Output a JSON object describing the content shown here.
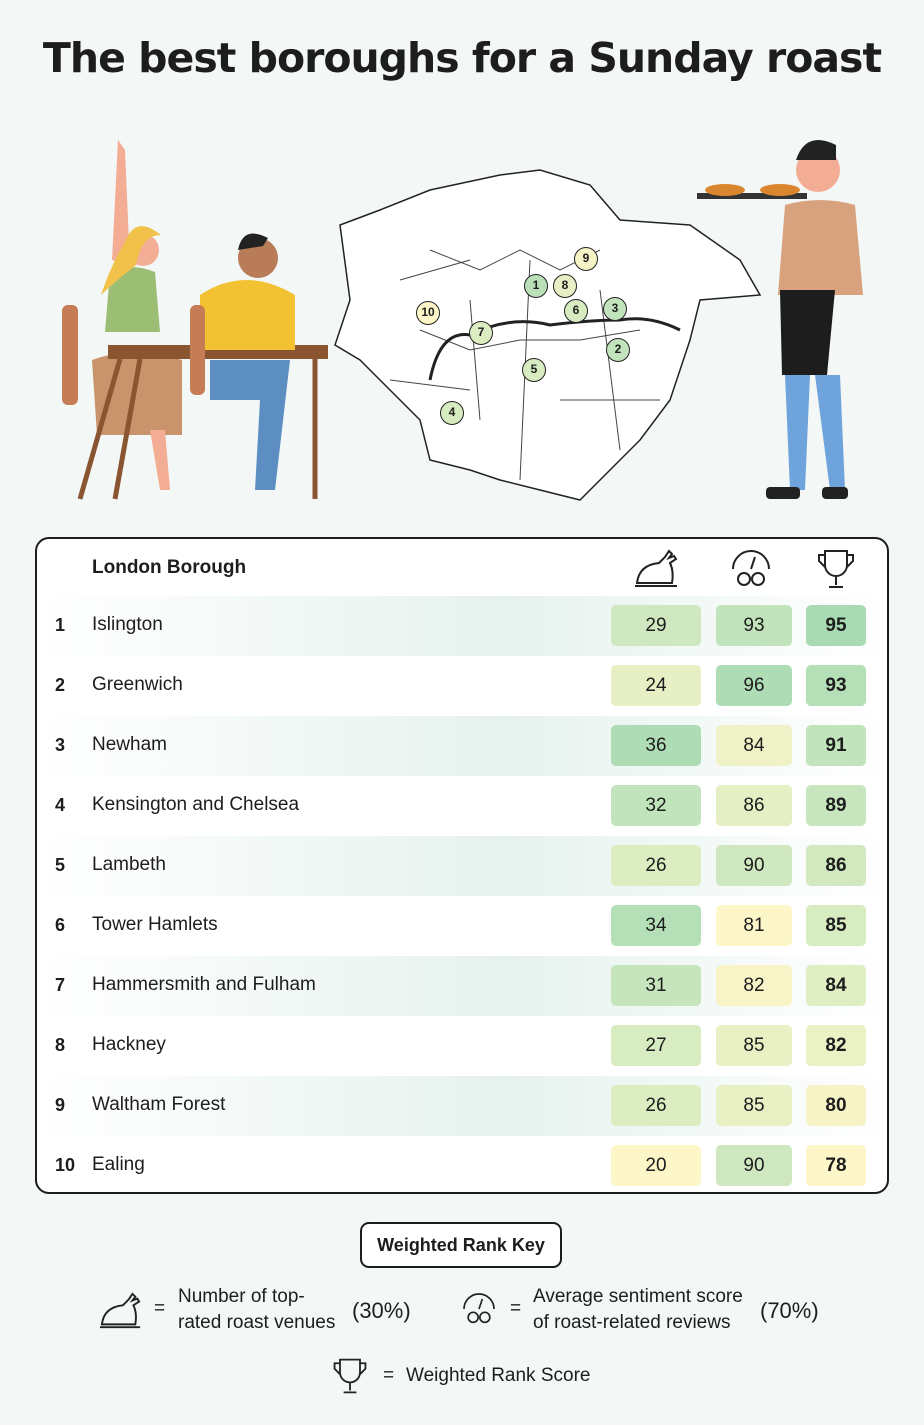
{
  "title": "The best boroughs for a Sunday roast",
  "table": {
    "header": "London Borough",
    "columns": [
      {
        "icon": "roast-chicken-icon"
      },
      {
        "icon": "sentiment-gauge-icon"
      },
      {
        "icon": "trophy-icon"
      }
    ],
    "rows": [
      {
        "rank": "1",
        "name": "Islington",
        "venues": "29",
        "sentiment": "93",
        "score": "95",
        "colors": [
          "#cfe8c0",
          "#c2e4bc",
          "#a8dab4"
        ]
      },
      {
        "rank": "2",
        "name": "Greenwich",
        "venues": "24",
        "sentiment": "96",
        "score": "93",
        "colors": [
          "#e6f0c4",
          "#aedcb4",
          "#b4dfb7"
        ]
      },
      {
        "rank": "3",
        "name": "Newham",
        "venues": "36",
        "sentiment": "84",
        "score": "91",
        "colors": [
          "#aedcb4",
          "#eef2c6",
          "#c2e4bc"
        ]
      },
      {
        "rank": "4",
        "name": "Kensington and Chelsea",
        "venues": "32",
        "sentiment": "86",
        "score": "89",
        "colors": [
          "#c2e4bc",
          "#e4efc4",
          "#c8e6bd"
        ]
      },
      {
        "rank": "5",
        "name": "Lambeth",
        "venues": "26",
        "sentiment": "90",
        "score": "86",
        "colors": [
          "#dcedc2",
          "#cfe8c0",
          "#d2e9c0"
        ]
      },
      {
        "rank": "6",
        "name": "Tower Hamlets",
        "venues": "34",
        "sentiment": "81",
        "score": "85",
        "colors": [
          "#b4dfb7",
          "#fdf6c8",
          "#d8ecc1"
        ]
      },
      {
        "rank": "7",
        "name": "Hammersmith and Fulham",
        "venues": "31",
        "sentiment": "82",
        "score": "84",
        "colors": [
          "#c6e5bd",
          "#f8f4c7",
          "#e0eec3"
        ]
      },
      {
        "rank": "8",
        "name": "Hackney",
        "venues": "27",
        "sentiment": "85",
        "score": "82",
        "colors": [
          "#d8ecc1",
          "#e8f0c4",
          "#eaf1c5"
        ]
      },
      {
        "rank": "9",
        "name": "Waltham Forest",
        "venues": "26",
        "sentiment": "85",
        "score": "80",
        "colors": [
          "#dcedc2",
          "#e8f0c4",
          "#f6f4c7"
        ]
      },
      {
        "rank": "10",
        "name": "Ealing",
        "venues": "20",
        "sentiment": "90",
        "score": "78",
        "colors": [
          "#fdf6c8",
          "#cfe8c0",
          "#fdf6c8"
        ]
      }
    ]
  },
  "map": {
    "markers": [
      "1",
      "2",
      "3",
      "4",
      "5",
      "6",
      "7",
      "8",
      "9",
      "10"
    ]
  },
  "key": {
    "title": "Weighted Rank Key",
    "eq": "=",
    "venues_line1": "Number of top-",
    "venues_line2": "rated roast venues",
    "venues_pct": "(30%)",
    "sentiment_line1": "Average sentiment score",
    "sentiment_line2": "of roast-related reviews",
    "sentiment_pct": "(70%)",
    "score_label": "Weighted Rank Score"
  }
}
